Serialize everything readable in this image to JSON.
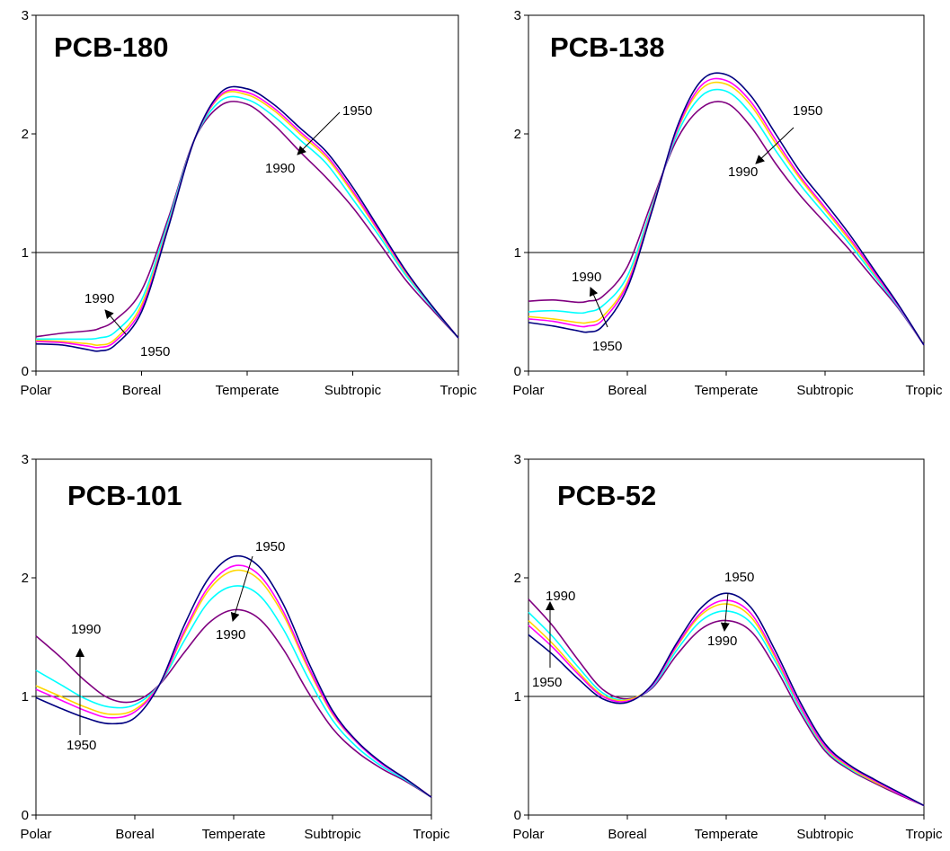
{
  "colors": {
    "1950": "#000080",
    "1960": "#FF00FF",
    "1970": "#FFD700",
    "1980": "#00FFFF",
    "1990": "#800080",
    "reference_line": "#000000",
    "frame": "#000000"
  },
  "chart_data": [
    {
      "type": "line",
      "title": "PCB-180",
      "categories": [
        "Polar",
        "Boreal",
        "Temperate",
        "Subtropic",
        "Tropic"
      ],
      "ylim": [
        0,
        3
      ],
      "yticks": [
        "0",
        "1",
        "2",
        "3"
      ],
      "reference_line": 1,
      "annotations": [
        {
          "from_label": "1950",
          "to_label": "1990"
        },
        {
          "from_label": "1950",
          "to_label": "1990"
        }
      ],
      "series": [
        {
          "key": "1950",
          "x": [
            0,
            0.25,
            0.5,
            0.6,
            0.75,
            1,
            1.25,
            1.5,
            1.75,
            2,
            2.25,
            2.5,
            2.75,
            3,
            3.25,
            3.5,
            3.75,
            4
          ],
          "values": [
            0.23,
            0.22,
            0.18,
            0.17,
            0.22,
            0.5,
            1.2,
            1.95,
            2.35,
            2.38,
            2.25,
            2.05,
            1.85,
            1.55,
            1.2,
            0.85,
            0.55,
            0.28
          ]
        },
        {
          "key": "1960",
          "x": [
            0,
            0.25,
            0.5,
            0.6,
            0.75,
            1,
            1.25,
            1.5,
            1.75,
            2,
            2.25,
            2.5,
            2.75,
            3,
            3.25,
            3.5,
            3.75,
            4
          ],
          "values": [
            0.25,
            0.24,
            0.21,
            0.2,
            0.25,
            0.53,
            1.21,
            1.95,
            2.33,
            2.35,
            2.22,
            2.02,
            1.82,
            1.52,
            1.18,
            0.84,
            0.55,
            0.28
          ]
        },
        {
          "key": "1970",
          "x": [
            0,
            0.25,
            0.5,
            0.6,
            0.75,
            1,
            1.25,
            1.5,
            1.75,
            2,
            2.25,
            2.5,
            2.75,
            3,
            3.25,
            3.5,
            3.75,
            4
          ],
          "values": [
            0.26,
            0.25,
            0.23,
            0.22,
            0.27,
            0.56,
            1.22,
            1.95,
            2.32,
            2.33,
            2.2,
            2.0,
            1.8,
            1.5,
            1.17,
            0.83,
            0.55,
            0.28
          ]
        },
        {
          "key": "1980",
          "x": [
            0,
            0.25,
            0.5,
            0.6,
            0.75,
            1,
            1.25,
            1.5,
            1.75,
            2,
            2.25,
            2.5,
            2.75,
            3,
            3.25,
            3.5,
            3.75,
            4
          ],
          "values": [
            0.27,
            0.27,
            0.27,
            0.28,
            0.33,
            0.6,
            1.25,
            1.95,
            2.28,
            2.29,
            2.15,
            1.95,
            1.75,
            1.45,
            1.14,
            0.81,
            0.54,
            0.28
          ]
        },
        {
          "key": "1990",
          "x": [
            0,
            0.25,
            0.5,
            0.6,
            0.75,
            1,
            1.25,
            1.5,
            1.75,
            2,
            2.25,
            2.5,
            2.75,
            3,
            3.25,
            3.5,
            3.75,
            4
          ],
          "values": [
            0.29,
            0.32,
            0.34,
            0.36,
            0.43,
            0.68,
            1.28,
            1.95,
            2.24,
            2.25,
            2.08,
            1.85,
            1.63,
            1.38,
            1.08,
            0.77,
            0.52,
            0.28
          ]
        }
      ]
    },
    {
      "type": "line",
      "title": "PCB-138",
      "categories": [
        "Polar",
        "Boreal",
        "Temperate",
        "Subtropic",
        "Tropic"
      ],
      "ylim": [
        0,
        3
      ],
      "yticks": [
        "0",
        "1",
        "2",
        "3"
      ],
      "reference_line": 1,
      "annotations": [
        {
          "from_label": "1950",
          "to_label": "1990"
        },
        {
          "from_label": "1950",
          "to_label": "1990"
        }
      ],
      "series": [
        {
          "key": "1950",
          "x": [
            0,
            0.25,
            0.5,
            0.6,
            0.75,
            1,
            1.25,
            1.5,
            1.75,
            2,
            2.25,
            2.5,
            2.75,
            3,
            3.25,
            3.5,
            3.75,
            4
          ],
          "values": [
            0.41,
            0.38,
            0.34,
            0.33,
            0.38,
            0.7,
            1.35,
            2.05,
            2.45,
            2.5,
            2.32,
            2.0,
            1.68,
            1.42,
            1.15,
            0.85,
            0.55,
            0.22
          ]
        },
        {
          "key": "1960",
          "x": [
            0,
            0.25,
            0.5,
            0.6,
            0.75,
            1,
            1.25,
            1.5,
            1.75,
            2,
            2.25,
            2.5,
            2.75,
            3,
            3.25,
            3.5,
            3.75,
            4
          ],
          "values": [
            0.44,
            0.42,
            0.38,
            0.38,
            0.43,
            0.73,
            1.36,
            2.03,
            2.41,
            2.45,
            2.27,
            1.95,
            1.64,
            1.38,
            1.12,
            0.83,
            0.54,
            0.22
          ]
        },
        {
          "key": "1970",
          "x": [
            0,
            0.25,
            0.5,
            0.6,
            0.75,
            1,
            1.25,
            1.5,
            1.75,
            2,
            2.25,
            2.5,
            2.75,
            3,
            3.25,
            3.5,
            3.75,
            4
          ],
          "values": [
            0.46,
            0.44,
            0.41,
            0.41,
            0.46,
            0.75,
            1.37,
            2.02,
            2.38,
            2.42,
            2.24,
            1.92,
            1.62,
            1.36,
            1.1,
            0.82,
            0.54,
            0.22
          ]
        },
        {
          "key": "1980",
          "x": [
            0,
            0.25,
            0.5,
            0.6,
            0.75,
            1,
            1.25,
            1.5,
            1.75,
            2,
            2.25,
            2.5,
            2.75,
            3,
            3.25,
            3.5,
            3.75,
            4
          ],
          "values": [
            0.5,
            0.51,
            0.49,
            0.5,
            0.55,
            0.8,
            1.39,
            1.99,
            2.32,
            2.36,
            2.17,
            1.86,
            1.57,
            1.32,
            1.07,
            0.8,
            0.53,
            0.22
          ]
        },
        {
          "key": "1990",
          "x": [
            0,
            0.25,
            0.5,
            0.6,
            0.75,
            1,
            1.25,
            1.5,
            1.75,
            2,
            2.25,
            2.5,
            2.75,
            3,
            3.25,
            3.5,
            3.75,
            4
          ],
          "values": [
            0.59,
            0.6,
            0.58,
            0.59,
            0.63,
            0.88,
            1.43,
            1.95,
            2.22,
            2.26,
            2.06,
            1.75,
            1.48,
            1.25,
            1.02,
            0.77,
            0.52,
            0.22
          ]
        }
      ]
    },
    {
      "type": "line",
      "title": "PCB-101",
      "categories": [
        "Polar",
        "Boreal",
        "Temperate",
        "Subtropic",
        "Tropic"
      ],
      "ylim": [
        0,
        3
      ],
      "yticks": [
        "0",
        "1",
        "2",
        "3"
      ],
      "reference_line": 1,
      "annotations": [
        {
          "from_label": "1950",
          "to_label": "1990"
        },
        {
          "from_label": "1950",
          "to_label": "1990"
        }
      ],
      "series": [
        {
          "key": "1950",
          "x": [
            0,
            0.25,
            0.5,
            0.75,
            1,
            1.25,
            1.5,
            1.75,
            2,
            2.25,
            2.5,
            2.75,
            3,
            3.25,
            3.5,
            3.75,
            4
          ],
          "values": [
            0.99,
            0.9,
            0.82,
            0.77,
            0.82,
            1.1,
            1.6,
            2.0,
            2.18,
            2.1,
            1.78,
            1.3,
            0.88,
            0.62,
            0.44,
            0.3,
            0.15
          ]
        },
        {
          "key": "1960",
          "x": [
            0,
            0.25,
            0.5,
            0.75,
            1,
            1.25,
            1.5,
            1.75,
            2,
            2.25,
            2.5,
            2.75,
            3,
            3.25,
            3.5,
            3.75,
            4
          ],
          "values": [
            1.06,
            0.97,
            0.88,
            0.82,
            0.87,
            1.1,
            1.55,
            1.93,
            2.1,
            2.03,
            1.72,
            1.26,
            0.86,
            0.61,
            0.43,
            0.3,
            0.15
          ]
        },
        {
          "key": "1970",
          "x": [
            0,
            0.25,
            0.5,
            0.75,
            1,
            1.25,
            1.5,
            1.75,
            2,
            2.25,
            2.5,
            2.75,
            3,
            3.25,
            3.5,
            3.75,
            4
          ],
          "values": [
            1.09,
            1.0,
            0.91,
            0.85,
            0.89,
            1.1,
            1.53,
            1.9,
            2.06,
            1.99,
            1.69,
            1.24,
            0.85,
            0.61,
            0.43,
            0.3,
            0.15
          ]
        },
        {
          "key": "1980",
          "x": [
            0,
            0.25,
            0.5,
            0.75,
            1,
            1.25,
            1.5,
            1.75,
            2,
            2.25,
            2.5,
            2.75,
            3,
            3.25,
            3.5,
            3.75,
            4
          ],
          "values": [
            1.22,
            1.1,
            0.98,
            0.91,
            0.93,
            1.1,
            1.47,
            1.8,
            1.93,
            1.86,
            1.57,
            1.16,
            0.8,
            0.57,
            0.41,
            0.29,
            0.15
          ]
        },
        {
          "key": "1990",
          "x": [
            0,
            0.25,
            0.5,
            0.75,
            1,
            1.25,
            1.5,
            1.75,
            2,
            2.25,
            2.5,
            2.75,
            3,
            3.25,
            3.5,
            3.75,
            4
          ],
          "values": [
            1.51,
            1.33,
            1.13,
            0.98,
            0.96,
            1.1,
            1.37,
            1.62,
            1.73,
            1.66,
            1.4,
            1.04,
            0.73,
            0.53,
            0.39,
            0.28,
            0.15
          ]
        }
      ]
    },
    {
      "type": "line",
      "title": "PCB-52",
      "categories": [
        "Polar",
        "Boreal",
        "Temperate",
        "Subtropic",
        "Tropic"
      ],
      "ylim": [
        0,
        3
      ],
      "yticks": [
        "0",
        "1",
        "2",
        "3"
      ],
      "reference_line": 1,
      "annotations": [
        {
          "from_label": "1950",
          "to_label": "1990"
        },
        {
          "from_label": "1950",
          "to_label": "1990"
        }
      ],
      "series": [
        {
          "key": "1950",
          "x": [
            0,
            0.25,
            0.5,
            0.75,
            1,
            1.25,
            1.5,
            1.75,
            2,
            2.25,
            2.5,
            2.75,
            3,
            3.25,
            3.5,
            3.75,
            4
          ],
          "values": [
            1.52,
            1.35,
            1.15,
            0.98,
            0.95,
            1.1,
            1.45,
            1.75,
            1.87,
            1.75,
            1.38,
            0.95,
            0.6,
            0.42,
            0.3,
            0.19,
            0.08
          ]
        },
        {
          "key": "1960",
          "x": [
            0,
            0.25,
            0.5,
            0.75,
            1,
            1.25,
            1.5,
            1.75,
            2,
            2.25,
            2.5,
            2.75,
            3,
            3.25,
            3.5,
            3.75,
            4
          ],
          "values": [
            1.6,
            1.41,
            1.19,
            1.0,
            0.96,
            1.09,
            1.43,
            1.71,
            1.81,
            1.7,
            1.34,
            0.92,
            0.58,
            0.41,
            0.29,
            0.18,
            0.08
          ]
        },
        {
          "key": "1970",
          "x": [
            0,
            0.25,
            0.5,
            0.75,
            1,
            1.25,
            1.5,
            1.75,
            2,
            2.25,
            2.5,
            2.75,
            3,
            3.25,
            3.5,
            3.75,
            4
          ],
          "values": [
            1.64,
            1.44,
            1.21,
            1.01,
            0.97,
            1.09,
            1.42,
            1.69,
            1.78,
            1.67,
            1.32,
            0.91,
            0.57,
            0.4,
            0.28,
            0.18,
            0.08
          ]
        },
        {
          "key": "1980",
          "x": [
            0,
            0.25,
            0.5,
            0.75,
            1,
            1.25,
            1.5,
            1.75,
            2,
            2.25,
            2.5,
            2.75,
            3,
            3.25,
            3.5,
            3.75,
            4
          ],
          "values": [
            1.71,
            1.5,
            1.25,
            1.03,
            0.97,
            1.08,
            1.39,
            1.64,
            1.72,
            1.62,
            1.29,
            0.89,
            0.56,
            0.39,
            0.28,
            0.18,
            0.08
          ]
        },
        {
          "key": "1990",
          "x": [
            0,
            0.25,
            0.5,
            0.75,
            1,
            1.25,
            1.5,
            1.75,
            2,
            2.25,
            2.5,
            2.75,
            3,
            3.25,
            3.5,
            3.75,
            4
          ],
          "values": [
            1.82,
            1.59,
            1.31,
            1.06,
            0.98,
            1.07,
            1.35,
            1.57,
            1.64,
            1.55,
            1.24,
            0.86,
            0.54,
            0.38,
            0.27,
            0.17,
            0.08
          ]
        }
      ]
    }
  ]
}
